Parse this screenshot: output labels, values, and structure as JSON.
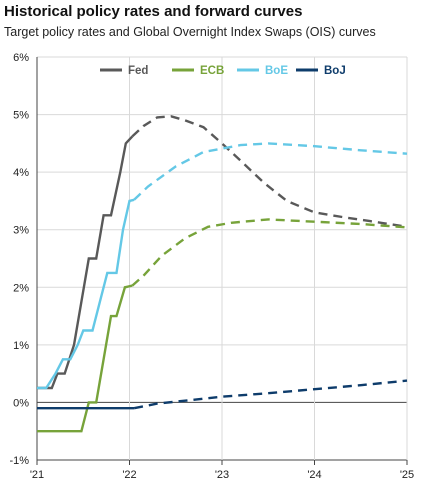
{
  "title": "Historical policy rates and forward curves",
  "subtitle": "Target policy rates and Global Overnight Index Swaps (OIS) curves",
  "chart_data": {
    "type": "line",
    "xlim": [
      2021,
      2025
    ],
    "ylim": [
      -1,
      6
    ],
    "x_ticks": [
      {
        "value": 2021,
        "label": "'21"
      },
      {
        "value": 2022,
        "label": "'22"
      },
      {
        "value": 2023,
        "label": "'23"
      },
      {
        "value": 2024,
        "label": "'24"
      },
      {
        "value": 2025,
        "label": "'25"
      }
    ],
    "y_ticks": [
      {
        "value": -1,
        "label": "-1%"
      },
      {
        "value": 0,
        "label": "0%"
      },
      {
        "value": 1,
        "label": "1%"
      },
      {
        "value": 2,
        "label": "2%"
      },
      {
        "value": 3,
        "label": "3%"
      },
      {
        "value": 4,
        "label": "4%"
      },
      {
        "value": 5,
        "label": "5%"
      },
      {
        "value": 6,
        "label": "6%"
      }
    ],
    "grid": "horizontal",
    "legend_position": "top",
    "series": [
      {
        "name": "Fed",
        "color": "#595959",
        "historical": [
          [
            2021.0,
            0.25
          ],
          [
            2021.16,
            0.25
          ],
          [
            2021.22,
            0.5
          ],
          [
            2021.3,
            0.5
          ],
          [
            2021.4,
            1.0
          ],
          [
            2021.48,
            1.75
          ],
          [
            2021.56,
            2.5
          ],
          [
            2021.64,
            2.5
          ],
          [
            2021.72,
            3.25
          ],
          [
            2021.8,
            3.25
          ],
          [
            2021.9,
            4.0
          ],
          [
            2021.96,
            4.5
          ],
          [
            2022.03,
            4.62
          ]
        ],
        "forward": [
          [
            2022.03,
            4.62
          ],
          [
            2022.15,
            4.8
          ],
          [
            2022.3,
            4.95
          ],
          [
            2022.45,
            4.97
          ],
          [
            2022.6,
            4.9
          ],
          [
            2022.8,
            4.78
          ],
          [
            2023.0,
            4.5
          ],
          [
            2023.2,
            4.2
          ],
          [
            2023.45,
            3.82
          ],
          [
            2023.7,
            3.5
          ],
          [
            2024.0,
            3.3
          ],
          [
            2024.3,
            3.22
          ],
          [
            2024.6,
            3.15
          ],
          [
            2025.0,
            3.05
          ]
        ]
      },
      {
        "name": "ECB",
        "color": "#77a33a",
        "historical": [
          [
            2021.0,
            -0.5
          ],
          [
            2021.48,
            -0.5
          ],
          [
            2021.56,
            0.0
          ],
          [
            2021.64,
            0.0
          ],
          [
            2021.72,
            0.75
          ],
          [
            2021.8,
            1.5
          ],
          [
            2021.86,
            1.5
          ],
          [
            2021.95,
            2.0
          ],
          [
            2022.03,
            2.03
          ]
        ],
        "forward": [
          [
            2022.03,
            2.03
          ],
          [
            2022.15,
            2.2
          ],
          [
            2022.35,
            2.55
          ],
          [
            2022.6,
            2.85
          ],
          [
            2022.85,
            3.05
          ],
          [
            2023.1,
            3.12
          ],
          [
            2023.5,
            3.18
          ],
          [
            2024.0,
            3.14
          ],
          [
            2024.5,
            3.1
          ],
          [
            2025.0,
            3.04
          ]
        ]
      },
      {
        "name": "BoE",
        "color": "#64c8e6",
        "historical": [
          [
            2021.0,
            0.25
          ],
          [
            2021.1,
            0.25
          ],
          [
            2021.2,
            0.5
          ],
          [
            2021.28,
            0.75
          ],
          [
            2021.36,
            0.75
          ],
          [
            2021.44,
            1.0
          ],
          [
            2021.5,
            1.25
          ],
          [
            2021.6,
            1.25
          ],
          [
            2021.68,
            1.75
          ],
          [
            2021.76,
            2.25
          ],
          [
            2021.86,
            2.25
          ],
          [
            2021.93,
            3.0
          ],
          [
            2022.0,
            3.5
          ],
          [
            2022.05,
            3.52
          ]
        ],
        "forward": [
          [
            2022.05,
            3.52
          ],
          [
            2022.2,
            3.75
          ],
          [
            2022.5,
            4.1
          ],
          [
            2022.8,
            4.35
          ],
          [
            2023.2,
            4.47
          ],
          [
            2023.5,
            4.5
          ],
          [
            2024.0,
            4.45
          ],
          [
            2024.5,
            4.38
          ],
          [
            2025.0,
            4.32
          ]
        ]
      },
      {
        "name": "BoJ",
        "color": "#0e3c6b",
        "historical": [
          [
            2021.0,
            -0.1
          ],
          [
            2022.05,
            -0.1
          ]
        ],
        "forward": [
          [
            2022.05,
            -0.1
          ],
          [
            2022.3,
            -0.02
          ],
          [
            2022.6,
            0.03
          ],
          [
            2023.0,
            0.1
          ],
          [
            2023.5,
            0.16
          ],
          [
            2024.0,
            0.23
          ],
          [
            2024.5,
            0.3
          ],
          [
            2025.0,
            0.38
          ]
        ]
      }
    ]
  }
}
